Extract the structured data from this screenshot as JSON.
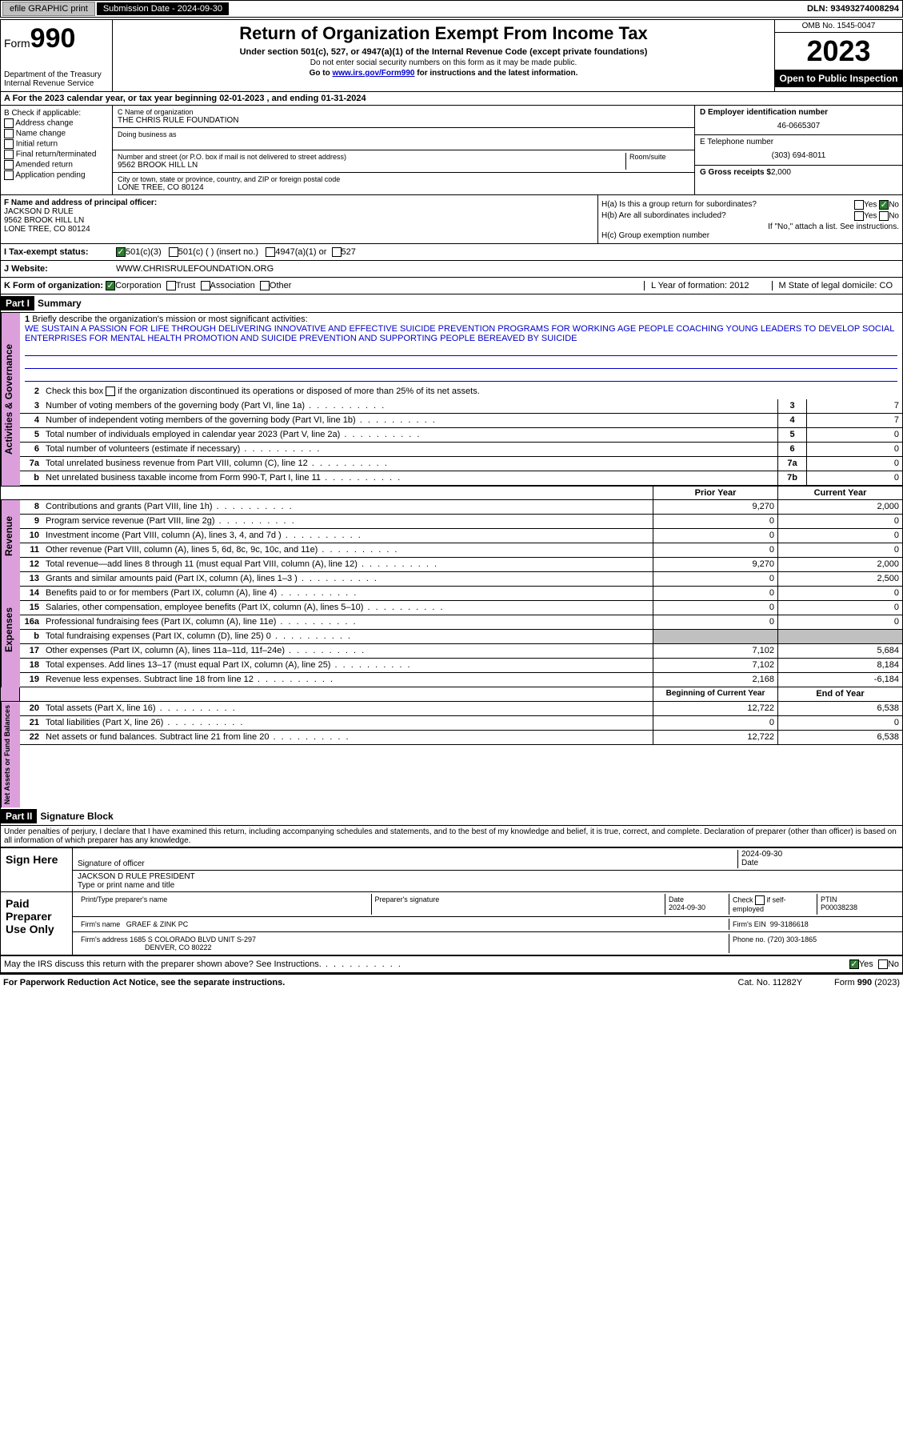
{
  "top": {
    "efile": "efile GRAPHIC print",
    "submission": "Submission Date - 2024-09-30",
    "dln": "DLN: 93493274008294"
  },
  "header": {
    "form_label": "Form",
    "form_num": "990",
    "dept": "Department of the Treasury",
    "irs": "Internal Revenue Service",
    "title": "Return of Organization Exempt From Income Tax",
    "sub1": "Under section 501(c), 527, or 4947(a)(1) of the Internal Revenue Code (except private foundations)",
    "sub2": "Do not enter social security numbers on this form as it may be made public.",
    "sub3_pre": "Go to ",
    "sub3_link": "www.irs.gov/Form990",
    "sub3_post": " for instructions and the latest information.",
    "omb": "OMB No. 1545-0047",
    "year": "2023",
    "open": "Open to Public Inspection"
  },
  "rowA": "A For the 2023 calendar year, or tax year beginning 02-01-2023   , and ending 01-31-2024",
  "b": {
    "title": "B Check if applicable:",
    "opts": [
      "Address change",
      "Name change",
      "Initial return",
      "Final return/terminated",
      "Amended return",
      "Application pending"
    ]
  },
  "c": {
    "name_label": "C Name of organization",
    "name": "THE CHRIS RULE FOUNDATION",
    "dba_label": "Doing business as",
    "addr_label": "Number and street (or P.O. box if mail is not delivered to street address)",
    "room_label": "Room/suite",
    "addr": "9562 BROOK HILL LN",
    "city_label": "City or town, state or province, country, and ZIP or foreign postal code",
    "city": "LONE TREE, CO  80124"
  },
  "d": {
    "ein_label": "D Employer identification number",
    "ein": "46-0665307",
    "tel_label": "E Telephone number",
    "tel": "(303) 694-8011",
    "gross_label": "G Gross receipts $",
    "gross": "2,000"
  },
  "f": {
    "label": "F  Name and address of principal officer:",
    "name": "JACKSON D RULE",
    "addr1": "9562 BROOK HILL LN",
    "addr2": "LONE TREE, CO  80124"
  },
  "h": {
    "a": "H(a)  Is this a group return for subordinates?",
    "b": "H(b)  Are all subordinates included?",
    "b_note": "If \"No,\" attach a list. See instructions.",
    "c": "H(c)  Group exemption number",
    "yes": "Yes",
    "no": "No"
  },
  "i": {
    "label": "I  Tax-exempt status:",
    "o1": "501(c)(3)",
    "o2": "501(c) (  ) (insert no.)",
    "o3": "4947(a)(1) or",
    "o4": "527"
  },
  "j": {
    "label": "J  Website:",
    "val": "WWW.CHRISRULEFOUNDATION.ORG"
  },
  "k": {
    "label": "K Form of organization:",
    "o1": "Corporation",
    "o2": "Trust",
    "o3": "Association",
    "o4": "Other",
    "l": "L Year of formation: 2012",
    "m": "M State of legal domicile: CO"
  },
  "parts": {
    "p1": "Part I",
    "p1_t": "Summary",
    "p2": "Part II",
    "p2_t": "Signature Block"
  },
  "summary": {
    "q1": "Briefly describe the organization's mission or most significant activities:",
    "mission": "WE SUSTAIN A PASSION FOR LIFE THROUGH DELIVERING INNOVATIVE AND EFFECTIVE SUICIDE PREVENTION PROGRAMS FOR WORKING AGE PEOPLE COACHING YOUNG LEADERS TO DEVELOP SOCIAL ENTERPRISES FOR MENTAL HEALTH PROMOTION AND SUICIDE PREVENTION AND SUPPORTING PEOPLE BEREAVED BY SUICIDE",
    "q2": "Check this box         if the organization discontinued its operations or disposed of more than 25% of its net assets.",
    "lines": [
      {
        "n": "3",
        "t": "Number of voting members of the governing body (Part VI, line 1a)",
        "box": "3",
        "v": "7"
      },
      {
        "n": "4",
        "t": "Number of independent voting members of the governing body (Part VI, line 1b)",
        "box": "4",
        "v": "7"
      },
      {
        "n": "5",
        "t": "Total number of individuals employed in calendar year 2023 (Part V, line 2a)",
        "box": "5",
        "v": "0"
      },
      {
        "n": "6",
        "t": "Total number of volunteers (estimate if necessary)",
        "box": "6",
        "v": "0"
      },
      {
        "n": "7a",
        "t": "Total unrelated business revenue from Part VIII, column (C), line 12",
        "box": "7a",
        "v": "0"
      },
      {
        "n": "b",
        "t": "Net unrelated business taxable income from Form 990-T, Part I, line 11",
        "box": "7b",
        "v": "0"
      }
    ],
    "prior_hdr": "Prior Year",
    "curr_hdr": "Current Year",
    "rev": [
      {
        "n": "8",
        "t": "Contributions and grants (Part VIII, line 1h)",
        "p": "9,270",
        "c": "2,000"
      },
      {
        "n": "9",
        "t": "Program service revenue (Part VIII, line 2g)",
        "p": "0",
        "c": "0"
      },
      {
        "n": "10",
        "t": "Investment income (Part VIII, column (A), lines 3, 4, and 7d )",
        "p": "0",
        "c": "0"
      },
      {
        "n": "11",
        "t": "Other revenue (Part VIII, column (A), lines 5, 6d, 8c, 9c, 10c, and 11e)",
        "p": "0",
        "c": "0"
      },
      {
        "n": "12",
        "t": "Total revenue—add lines 8 through 11 (must equal Part VIII, column (A), line 12)",
        "p": "9,270",
        "c": "2,000"
      }
    ],
    "exp": [
      {
        "n": "13",
        "t": "Grants and similar amounts paid (Part IX, column (A), lines 1–3 )",
        "p": "0",
        "c": "2,500"
      },
      {
        "n": "14",
        "t": "Benefits paid to or for members (Part IX, column (A), line 4)",
        "p": "0",
        "c": "0"
      },
      {
        "n": "15",
        "t": "Salaries, other compensation, employee benefits (Part IX, column (A), lines 5–10)",
        "p": "0",
        "c": "0"
      },
      {
        "n": "16a",
        "t": "Professional fundraising fees (Part IX, column (A), line 11e)",
        "p": "0",
        "c": "0"
      },
      {
        "n": "b",
        "t": "Total fundraising expenses (Part IX, column (D), line 25) 0",
        "p": "",
        "c": "",
        "shade": true
      },
      {
        "n": "17",
        "t": "Other expenses (Part IX, column (A), lines 11a–11d, 11f–24e)",
        "p": "7,102",
        "c": "5,684"
      },
      {
        "n": "18",
        "t": "Total expenses. Add lines 13–17 (must equal Part IX, column (A), line 25)",
        "p": "7,102",
        "c": "8,184"
      },
      {
        "n": "19",
        "t": "Revenue less expenses. Subtract line 18 from line 12",
        "p": "2,168",
        "c": "-6,184"
      }
    ],
    "net_hdr_p": "Beginning of Current Year",
    "net_hdr_c": "End of Year",
    "net": [
      {
        "n": "20",
        "t": "Total assets (Part X, line 16)",
        "p": "12,722",
        "c": "6,538"
      },
      {
        "n": "21",
        "t": "Total liabilities (Part X, line 26)",
        "p": "0",
        "c": "0"
      },
      {
        "n": "22",
        "t": "Net assets or fund balances. Subtract line 21 from line 20",
        "p": "12,722",
        "c": "6,538"
      }
    ]
  },
  "sig": {
    "perjury": "Under penalties of perjury, I declare that I have examined this return, including accompanying schedules and statements, and to the best of my knowledge and belief, it is true, correct, and complete. Declaration of preparer (other than officer) is based on all information of which preparer has any knowledge.",
    "sign_here": "Sign Here",
    "sig_label": "Signature of officer",
    "sig_date": "2024-09-30",
    "date_label": "Date",
    "officer": "JACKSON D RULE PRESIDENT",
    "type_label": "Type or print name and title",
    "paid": "Paid Preparer Use Only",
    "prep_name_label": "Print/Type preparer's name",
    "prep_sig_label": "Preparer's signature",
    "prep_date": "2024-09-30",
    "check_self": "Check         if self-employed",
    "ptin_label": "PTIN",
    "ptin": "P00038238",
    "firm_name_label": "Firm's name",
    "firm_name": "GRAEF & ZINK PC",
    "firm_ein_label": "Firm's EIN",
    "firm_ein": "99-3186618",
    "firm_addr_label": "Firm's address",
    "firm_addr1": "1685 S COLORADO BLVD UNIT S-297",
    "firm_addr2": "DENVER, CO  80222",
    "phone_label": "Phone no.",
    "phone": "(720) 303-1865",
    "discuss": "May the IRS discuss this return with the preparer shown above? See Instructions."
  },
  "footer": {
    "paperwork": "For Paperwork Reduction Act Notice, see the separate instructions.",
    "cat": "Cat. No. 11282Y",
    "form": "Form 990 (2023)"
  },
  "colors": {
    "link": "#0000cc",
    "side_bg": "#dba0dc",
    "shade": "#c0c0c0",
    "check_green": "#2e7d32"
  }
}
